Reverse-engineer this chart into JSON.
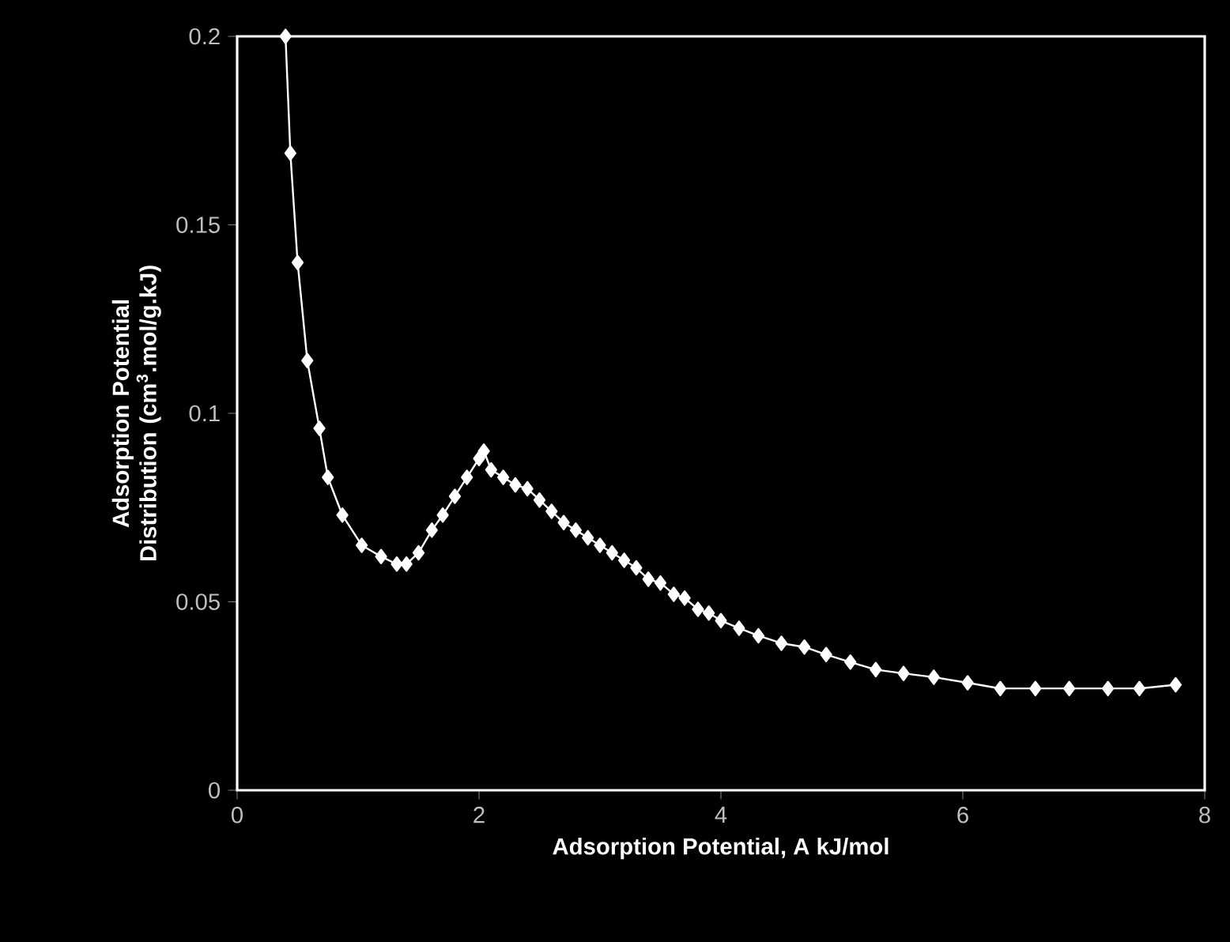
{
  "chart_data": {
    "type": "line",
    "xlabel": "Adsorption Potential, A kJ/mol",
    "ylabel": "Adsorption Potential Distribution (cm$^{3}$.mol/g.kJ)",
    "x": [
      0.4,
      0.44,
      0.5,
      0.58,
      0.68,
      0.75,
      0.87,
      1.03,
      1.19,
      1.32,
      1.4,
      1.5,
      1.61,
      1.7,
      1.8,
      1.9,
      2.0,
      2.04,
      2.1,
      2.2,
      2.3,
      2.4,
      2.5,
      2.6,
      2.7,
      2.8,
      2.9,
      3.0,
      3.1,
      3.2,
      3.3,
      3.4,
      3.5,
      3.61,
      3.7,
      3.81,
      3.9,
      4.0,
      4.15,
      4.31,
      4.5,
      4.69,
      4.87,
      5.07,
      5.28,
      5.51,
      5.76,
      6.04,
      6.31,
      6.6,
      6.88,
      7.2,
      7.46,
      7.76
    ],
    "series": [
      {
        "color": "#ffffff",
        "values": [
          0.2,
          0.169,
          0.14,
          0.114,
          0.096,
          0.083,
          0.073,
          0.065,
          0.062,
          0.06,
          0.06,
          0.063,
          0.069,
          0.073,
          0.078,
          0.083,
          0.088,
          0.09,
          0.085,
          0.083,
          0.081,
          0.08,
          0.077,
          0.074,
          0.071,
          0.069,
          0.067,
          0.065,
          0.063,
          0.061,
          0.059,
          0.056,
          0.055,
          0.052,
          0.051,
          0.048,
          0.047,
          0.045,
          0.043,
          0.041,
          0.039,
          0.038,
          0.036,
          0.034,
          0.032,
          0.031,
          0.03,
          0.0285,
          0.027,
          0.027,
          0.027,
          0.027,
          0.027,
          0.028
        ]
      }
    ],
    "xlim": [
      0,
      8
    ],
    "ylim": [
      0,
      0.2
    ],
    "xticks": [
      0,
      2,
      4,
      6,
      8
    ],
    "yticks": [
      0,
      0.05,
      {
        "value": 0.1,
        "label": "0.1"
      },
      0.15,
      0.2
    ],
    "marker": "diamond",
    "line_style": "solid"
  }
}
